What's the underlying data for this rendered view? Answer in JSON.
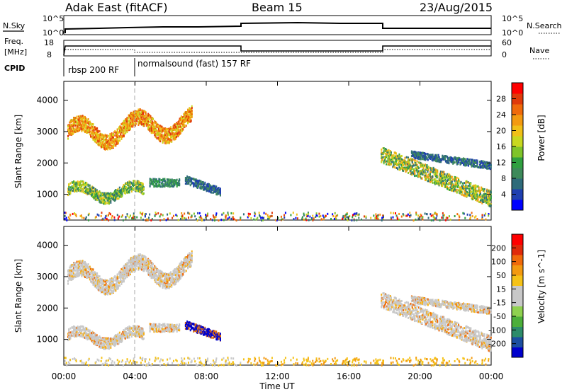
{
  "header": {
    "station": "Adak East (fitACF)",
    "beam": "Beam 15",
    "date": "23/Aug/2015"
  },
  "top_panels": {
    "nsky": {
      "label": "N.Sky",
      "tick_top": "10^5",
      "tick_bottom": "10^0"
    },
    "nsearch": {
      "label": "N.Search",
      "tick_top": "10^5",
      "tick_bottom": "10^0"
    },
    "freq": {
      "label_line1": "Freq.",
      "label_line2": "[MHz]",
      "tick_top": "18",
      "tick_bottom": "8"
    },
    "nave": {
      "label": "Nave",
      "tick_top": "60",
      "tick_bottom": "0"
    },
    "cpid": {
      "label": "CPID",
      "segments": [
        {
          "text": "rbsp 200 RF"
        },
        {
          "text": "normalsound (fast) 157 RF"
        }
      ]
    }
  },
  "chart_data": [
    {
      "type": "heatmap",
      "title": "",
      "xlabel": "",
      "ylabel": "Slant Range [km]",
      "xlim": [
        0,
        24
      ],
      "ylim": [
        180,
        4600
      ],
      "yticks": [
        1000,
        2000,
        3000,
        4000
      ],
      "colorbar": {
        "label": "Power [dB]",
        "ticks": [
          "4",
          "8",
          "12",
          "16",
          "20",
          "24",
          "28"
        ],
        "colors": [
          "#0000ff",
          "#1f3fb0",
          "#2e6b7a",
          "#3d8a5a",
          "#2fa040",
          "#7fc42a",
          "#c8d820",
          "#f0c018",
          "#f39a10",
          "#f06a0a",
          "#e03a0a",
          "#ff0000"
        ]
      }
    },
    {
      "type": "heatmap",
      "title": "",
      "xlabel": "Time UT",
      "ylabel": "Slant Range [km]",
      "xlim": [
        0,
        24
      ],
      "ylim": [
        180,
        4600
      ],
      "yticks": [
        1000,
        2000,
        3000,
        4000
      ],
      "xticks": [
        "00:00",
        "04:00",
        "08:00",
        "12:00",
        "16:00",
        "20:00",
        "00:00"
      ],
      "colorbar": {
        "label": "Velocity [m s^-1]",
        "ticks": [
          "200",
          "100",
          "50",
          "15",
          "-15",
          "-50",
          "-100",
          "-200"
        ],
        "colors": [
          "#0000cc",
          "#1c4fa0",
          "#2d8c6a",
          "#4caf3a",
          "#8fd14f",
          "#c8c8c8",
          "#c8c8c8",
          "#f5c218",
          "#f39a10",
          "#f06a0a",
          "#e02a0a",
          "#ff0000"
        ]
      }
    }
  ]
}
